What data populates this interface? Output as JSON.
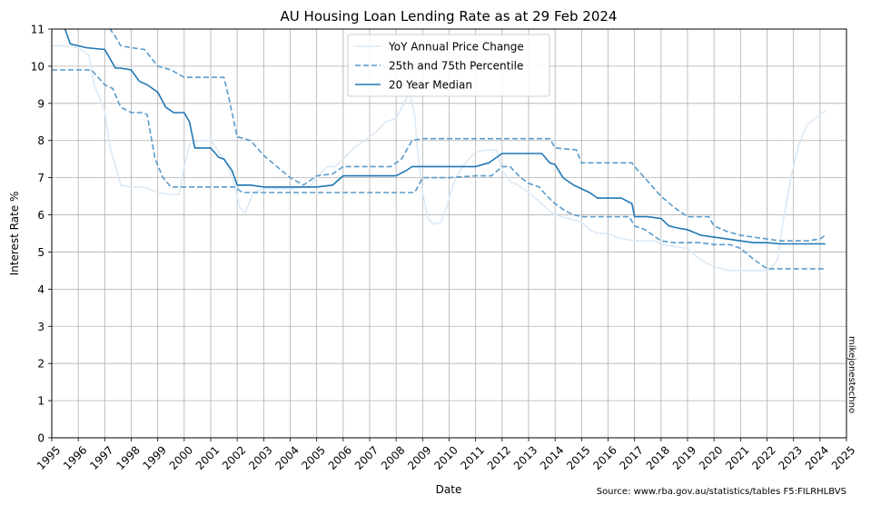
{
  "chart_data": {
    "type": "line",
    "title": "AU Housing Loan Lending Rate as at 29 Feb 2024",
    "xlabel": "Date",
    "ylabel": "Interest Rate %",
    "xlim": [
      1995,
      2025
    ],
    "ylim": [
      0,
      11
    ],
    "grid": true,
    "legend_position": "top-center",
    "x_ticks": [
      "1995",
      "1996",
      "1997",
      "1998",
      "1999",
      "2000",
      "2001",
      "2002",
      "2003",
      "2004",
      "2005",
      "2006",
      "2007",
      "2008",
      "2009",
      "2010",
      "2011",
      "2012",
      "2013",
      "2014",
      "2015",
      "2016",
      "2017",
      "2018",
      "2019",
      "2020",
      "2021",
      "2022",
      "2023",
      "2024",
      "2025"
    ],
    "y_ticks": [
      "0",
      "1",
      "2",
      "3",
      "4",
      "5",
      "6",
      "7",
      "8",
      "9",
      "10",
      "11"
    ],
    "series": [
      {
        "name": "YoY Annual Price Change",
        "style": "solid",
        "color": "#dce9f5",
        "x": [
          1995.0,
          1995.5,
          1996.0,
          1996.4,
          1996.6,
          1997.0,
          1997.2,
          1997.5,
          1997.6,
          1998.0,
          1998.5,
          1999.0,
          1999.5,
          1999.8,
          2000.0,
          2000.2,
          2000.6,
          2001.0,
          2001.5,
          2001.7,
          2001.9,
          2002.1,
          2002.3,
          2002.6,
          2003.0,
          2003.5,
          2004.0,
          2004.5,
          2004.8,
          2005.0,
          2005.4,
          2005.7,
          2006.0,
          2006.4,
          2006.8,
          2007.2,
          2007.6,
          2008.0,
          2008.3,
          2008.5,
          2008.7,
          2008.8,
          2009.0,
          2009.2,
          2009.4,
          2009.7,
          2009.9,
          2010.2,
          2010.5,
          2011.0,
          2011.5,
          2011.8,
          2012.0,
          2012.3,
          2012.6,
          2013.0,
          2013.5,
          2013.8,
          2014.0,
          2014.5,
          2015.0,
          2015.3,
          2015.6,
          2016.0,
          2016.3,
          2016.6,
          2017.0,
          2017.5,
          2017.8,
          2018.0,
          2018.5,
          2019.0,
          2019.3,
          2019.6,
          2020.0,
          2020.3,
          2020.6,
          2021.0,
          2021.5,
          2022.0,
          2022.2,
          2022.4,
          2022.6,
          2022.9,
          2023.2,
          2023.5,
          2023.8,
          2024.0,
          2024.2
        ],
        "values": [
          10.55,
          10.55,
          10.5,
          10.3,
          9.5,
          8.8,
          7.8,
          7.1,
          6.8,
          6.75,
          6.75,
          6.6,
          6.55,
          6.55,
          7.3,
          7.9,
          8.0,
          8.0,
          7.5,
          7.2,
          6.8,
          6.2,
          6.05,
          6.6,
          6.7,
          6.7,
          6.7,
          6.75,
          6.8,
          7.0,
          7.3,
          7.3,
          7.5,
          7.8,
          8.0,
          8.2,
          8.5,
          8.6,
          9.0,
          9.3,
          8.7,
          7.8,
          6.6,
          5.9,
          5.75,
          5.8,
          6.2,
          6.9,
          7.3,
          7.7,
          7.75,
          7.75,
          7.2,
          6.9,
          6.8,
          6.6,
          6.3,
          6.1,
          6.0,
          5.9,
          5.8,
          5.6,
          5.5,
          5.5,
          5.4,
          5.35,
          5.3,
          5.3,
          5.3,
          5.2,
          5.15,
          5.1,
          4.9,
          4.75,
          4.6,
          4.55,
          4.5,
          4.5,
          4.5,
          4.5,
          4.6,
          4.8,
          5.8,
          7.0,
          7.9,
          8.4,
          8.6,
          8.7,
          8.8
        ]
      },
      {
        "name": "25th and 75th Percentile",
        "style": "dashed",
        "color": "#5a9bcb",
        "x": [
          1995.0,
          1996.0,
          1996.5,
          1997.0,
          1997.3,
          1997.6,
          1998.0,
          1998.4,
          1998.6,
          1998.9,
          1999.2,
          1999.5,
          2000.0,
          2001.0,
          2001.5,
          2001.7,
          2001.9,
          2002.2,
          2002.6,
          2003.0,
          2003.5,
          2004.0,
          2005.0,
          2006.0,
          2007.0,
          2008.0,
          2008.4,
          2008.7,
          2009.0,
          2010.0,
          2011.0,
          2011.6,
          2012.0,
          2012.3,
          2012.7,
          2013.0,
          2013.4,
          2013.7,
          2014.0,
          2014.4,
          2014.7,
          2015.0,
          2015.5,
          2016.0,
          2016.5,
          2016.8,
          2017.0,
          2017.4,
          2017.7,
          2018.0,
          2018.5,
          2019.0,
          2019.5,
          2020.0,
          2020.3,
          2020.6,
          2021.0,
          2021.5,
          2022.0,
          2022.5,
          2023.0,
          2023.5,
          2024.0,
          2024.2
        ],
        "values": [
          9.9,
          9.9,
          9.9,
          9.5,
          9.4,
          8.9,
          8.75,
          8.75,
          8.7,
          7.5,
          7.0,
          6.75,
          6.75,
          6.75,
          6.75,
          6.75,
          6.75,
          6.6,
          6.6,
          6.6,
          6.6,
          6.6,
          6.6,
          6.6,
          6.6,
          6.6,
          6.6,
          6.6,
          7.0,
          7.0,
          7.05,
          7.05,
          7.3,
          7.3,
          7.0,
          6.85,
          6.75,
          6.5,
          6.3,
          6.1,
          6.0,
          5.95,
          5.95,
          5.95,
          5.95,
          5.95,
          5.7,
          5.6,
          5.45,
          5.3,
          5.25,
          5.25,
          5.25,
          5.2,
          5.2,
          5.2,
          5.1,
          4.8,
          4.55,
          4.55,
          4.55,
          4.55,
          4.55,
          4.55
        ]
      },
      {
        "name": "25th and 75th Percentile (upper)",
        "style": "dashed",
        "color": "#5a9bcb",
        "x": [
          1997.0,
          1997.2,
          1997.4,
          1997.6,
          1998.0,
          1998.5,
          1999.0,
          1999.5,
          2000.0,
          2001.0,
          2001.5,
          2001.7,
          2002.0,
          2002.5,
          2003.0,
          2003.5,
          2004.0,
          2004.5,
          2005.0,
          2005.6,
          2006.0,
          2007.0,
          2007.8,
          2008.2,
          2008.6,
          2009.0,
          2010.0,
          2011.0,
          2012.0,
          2013.0,
          2013.8,
          2014.0,
          2014.8,
          2015.0,
          2016.0,
          2016.9,
          2017.0,
          2017.5,
          2018.0,
          2018.5,
          2019.0,
          2019.8,
          2020.0,
          2020.5,
          2021.0,
          2021.5,
          2022.0,
          2022.5,
          2023.0,
          2023.5,
          2024.0,
          2024.2
        ],
        "values": [
          11.2,
          11.0,
          10.8,
          10.55,
          10.5,
          10.45,
          10.0,
          9.9,
          9.7,
          9.7,
          9.7,
          9.1,
          8.1,
          8.0,
          7.6,
          7.3,
          7.0,
          6.8,
          7.05,
          7.1,
          7.3,
          7.3,
          7.3,
          7.5,
          8.0,
          8.05,
          8.05,
          8.05,
          8.05,
          8.05,
          8.05,
          7.8,
          7.75,
          7.4,
          7.4,
          7.4,
          7.3,
          6.9,
          6.5,
          6.2,
          5.95,
          5.95,
          5.7,
          5.55,
          5.45,
          5.4,
          5.35,
          5.3,
          5.3,
          5.3,
          5.35,
          5.45
        ]
      },
      {
        "name": "20 Year Median",
        "style": "solid",
        "color": "#1f77b4",
        "x": [
          1995.0,
          1995.5,
          1995.7,
          1996.0,
          1996.3,
          1997.0,
          1997.2,
          1997.4,
          1997.6,
          1998.0,
          1998.3,
          1998.6,
          1999.0,
          1999.3,
          1999.6,
          2000.0,
          2000.2,
          2000.4,
          2001.0,
          2001.3,
          2001.5,
          2001.8,
          2002.0,
          2002.5,
          2003.0,
          2004.0,
          2005.0,
          2005.6,
          2006.0,
          2007.0,
          2008.0,
          2008.4,
          2008.6,
          2009.0,
          2010.0,
          2011.0,
          2011.5,
          2012.0,
          2012.5,
          2013.0,
          2013.5,
          2013.8,
          2014.0,
          2014.3,
          2014.7,
          2015.0,
          2015.3,
          2015.6,
          2016.0,
          2016.5,
          2016.9,
          2017.0,
          2017.5,
          2018.0,
          2018.3,
          2018.6,
          2019.0,
          2019.5,
          2020.0,
          2020.5,
          2021.0,
          2021.5,
          2022.0,
          2022.5,
          2023.0,
          2023.5,
          2024.0,
          2024.2
        ],
        "values": [
          11.2,
          11.0,
          10.6,
          10.55,
          10.5,
          10.45,
          10.2,
          9.95,
          9.95,
          9.9,
          9.6,
          9.5,
          9.3,
          8.9,
          8.75,
          8.75,
          8.5,
          7.8,
          7.8,
          7.55,
          7.5,
          7.2,
          6.8,
          6.8,
          6.75,
          6.75,
          6.75,
          6.8,
          7.05,
          7.05,
          7.05,
          7.2,
          7.3,
          7.3,
          7.3,
          7.3,
          7.4,
          7.65,
          7.65,
          7.65,
          7.65,
          7.4,
          7.35,
          7.0,
          6.8,
          6.7,
          6.6,
          6.45,
          6.45,
          6.45,
          6.3,
          5.95,
          5.95,
          5.9,
          5.7,
          5.65,
          5.6,
          5.45,
          5.4,
          5.35,
          5.3,
          5.25,
          5.25,
          5.22,
          5.22,
          5.22,
          5.22,
          5.22
        ]
      }
    ],
    "legend": [
      {
        "label": "YoY Annual Price Change",
        "style": "solid",
        "color": "#dce9f5"
      },
      {
        "label": "25th and 75th Percentile",
        "style": "dashed",
        "color": "#5a9bcb"
      },
      {
        "label": "20 Year Median",
        "style": "solid",
        "color": "#1f77b4"
      }
    ],
    "watermark": "mikejonestechno",
    "source_note": "Source: www.rba.gov.au/statistics/tables F5:FILRHLBVS"
  }
}
